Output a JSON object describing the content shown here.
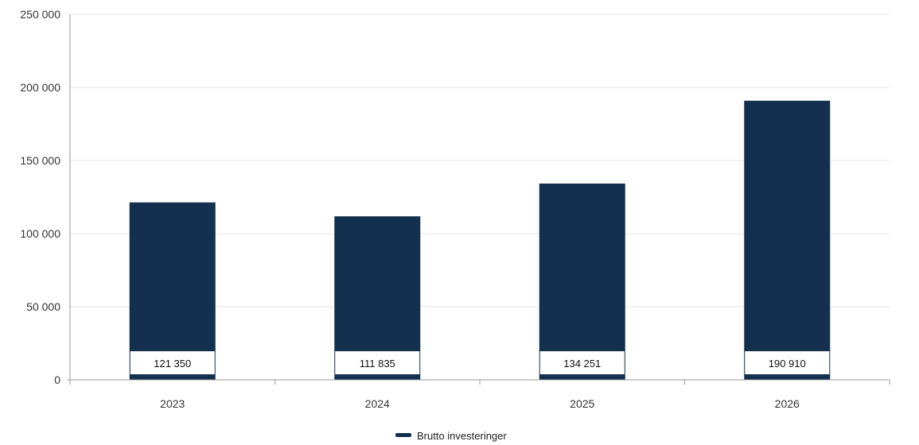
{
  "chart_data": {
    "type": "bar",
    "categories": [
      "2023",
      "2024",
      "2025",
      "2026"
    ],
    "series": [
      {
        "name": "Brutto investeringer",
        "values": [
          121350,
          111835,
          134251,
          190910
        ]
      }
    ],
    "data_labels": [
      "121 350",
      "111 835",
      "134 251",
      "190 910"
    ],
    "y_ticks": [
      0,
      50000,
      100000,
      150000,
      200000,
      250000
    ],
    "y_tick_labels": [
      "0",
      "50 000",
      "100 000",
      "150 000",
      "200 000",
      "250 000"
    ],
    "ylim": [
      0,
      250000
    ],
    "grid": true,
    "legend_position": "bottom-center",
    "colors": {
      "bar": "#13304f",
      "grid": "#e6e6e6",
      "axis": "#999999"
    }
  }
}
